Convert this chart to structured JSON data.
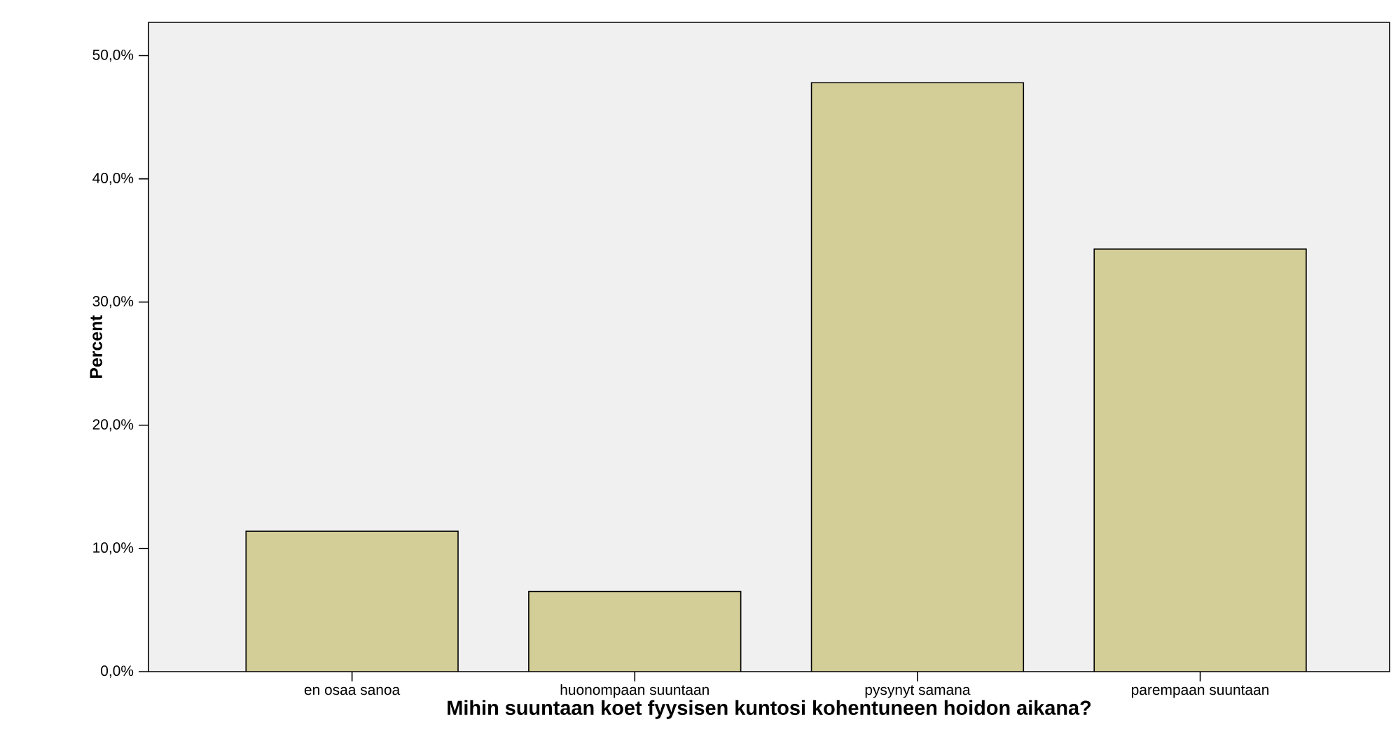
{
  "chart_data": {
    "type": "bar",
    "xlabel": "Mihin suuntaan koet fyysisen kuntosi kohentuneen hoidon aikana?",
    "ylabel": "Percent",
    "categories": [
      "en osaa sanoa",
      "huonompaan suuntaan",
      "pysynyt samana",
      "parempaan suuntaan"
    ],
    "values": [
      11.4,
      6.5,
      47.8,
      34.3
    ],
    "color": "#d3cd97",
    "ylim": [
      0,
      52.7
    ],
    "yticks": [
      {
        "value": 0,
        "label": "0,0%"
      },
      {
        "value": 10,
        "label": "10,0%"
      },
      {
        "value": 20,
        "label": "20,0%"
      },
      {
        "value": 30,
        "label": "30,0%"
      },
      {
        "value": 40,
        "label": "40,0%"
      },
      {
        "value": 50,
        "label": "50,0%"
      }
    ],
    "grid": false
  }
}
